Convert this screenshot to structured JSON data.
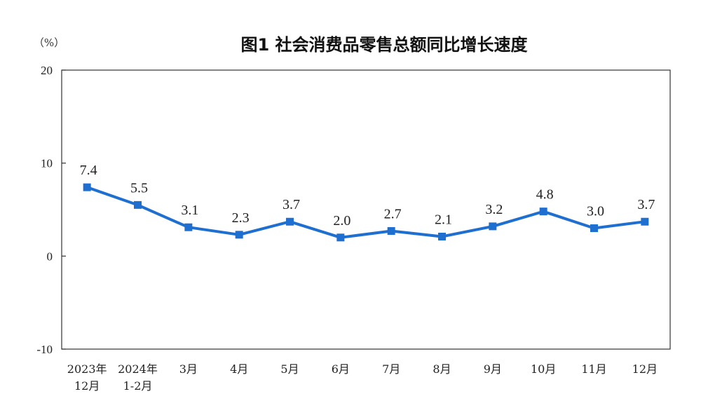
{
  "chart_data": {
    "type": "line",
    "title": "图1  社会消费品零售总额同比增长速度",
    "unit": "（%）",
    "ylim": [
      -10,
      20
    ],
    "yticks": [
      -10,
      0,
      10,
      20
    ],
    "grid": false,
    "categories": [
      [
        "2023年",
        "12月"
      ],
      [
        "2024年",
        "1-2月"
      ],
      [
        "3月"
      ],
      [
        "4月"
      ],
      [
        "5月"
      ],
      [
        "6月"
      ],
      [
        "7月"
      ],
      [
        "8月"
      ],
      [
        "9月"
      ],
      [
        "10月"
      ],
      [
        "11月"
      ],
      [
        "12月"
      ]
    ],
    "series": [
      {
        "values": [
          7.4,
          5.5,
          3.1,
          2.3,
          3.7,
          2.0,
          2.7,
          2.1,
          3.2,
          4.8,
          3.0,
          3.7
        ],
        "labels": [
          "7.4",
          "5.5",
          "3.1",
          "2.3",
          "3.7",
          "2.0",
          "2.7",
          "2.1",
          "3.2",
          "4.8",
          "3.0",
          "3.7"
        ],
        "color": "#1f6fd1",
        "marker": "square"
      }
    ]
  }
}
